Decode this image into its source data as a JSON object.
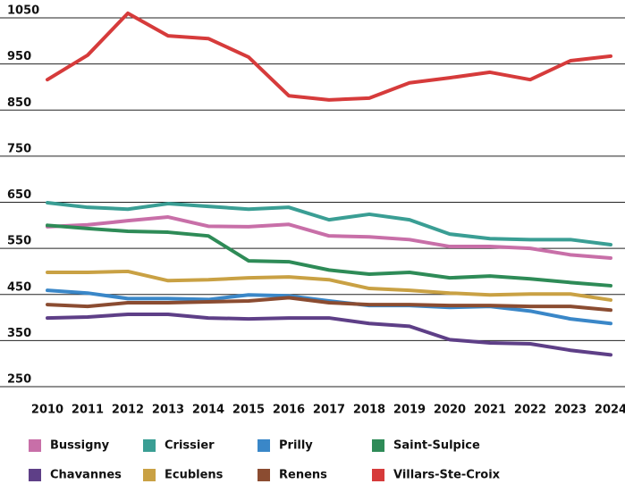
{
  "chart_data": {
    "type": "line",
    "categories": [
      "2010",
      "2011",
      "2012",
      "2013",
      "2014",
      "2015",
      "2016",
      "2017",
      "2018",
      "2019",
      "2020",
      "2021",
      "2022",
      "2023",
      "2024"
    ],
    "ylim": [
      250,
      1050
    ],
    "yticks": [
      250,
      350,
      450,
      550,
      650,
      750,
      850,
      950,
      1050
    ],
    "grid": true,
    "series": [
      {
        "name": "Bussigny",
        "color": "#c86fa8",
        "values": [
          597,
          601,
          610,
          618,
          598,
          597,
          602,
          577,
          575,
          569,
          554,
          554,
          550,
          536,
          529
        ]
      },
      {
        "name": "Crissier",
        "color": "#3a9e94",
        "values": [
          649,
          639,
          635,
          647,
          641,
          635,
          639,
          612,
          624,
          612,
          581,
          571,
          569,
          569,
          558
        ]
      },
      {
        "name": "Prilly",
        "color": "#3a87c8",
        "values": [
          459,
          453,
          441,
          441,
          439,
          449,
          447,
          436,
          426,
          426,
          422,
          424,
          414,
          397,
          387
        ]
      },
      {
        "name": "Saint-Sulpice",
        "color": "#2e8b57",
        "values": [
          600,
          593,
          587,
          585,
          577,
          523,
          521,
          503,
          494,
          498,
          486,
          490,
          484,
          476,
          469
        ]
      },
      {
        "name": "Chavannes",
        "color": "#5e3f87",
        "values": [
          399,
          401,
          407,
          407,
          399,
          397,
          399,
          399,
          387,
          381,
          352,
          345,
          343,
          329,
          319
        ]
      },
      {
        "name": "Ecublens",
        "color": "#c9a144",
        "values": [
          498,
          498,
          500,
          480,
          482,
          486,
          488,
          482,
          463,
          459,
          453,
          449,
          451,
          451,
          438
        ]
      },
      {
        "name": "Renens",
        "color": "#8b4c31",
        "values": [
          428,
          424,
          432,
          432,
          434,
          436,
          443,
          432,
          428,
          428,
          426,
          426,
          424,
          424,
          416
        ]
      },
      {
        "name": "Villars-Ste-Croix",
        "color": "#d63b3b",
        "values": [
          916,
          969,
          1060,
          1011,
          1005,
          965,
          881,
          872,
          876,
          909,
          920,
          932,
          916,
          957,
          967
        ]
      }
    ]
  }
}
